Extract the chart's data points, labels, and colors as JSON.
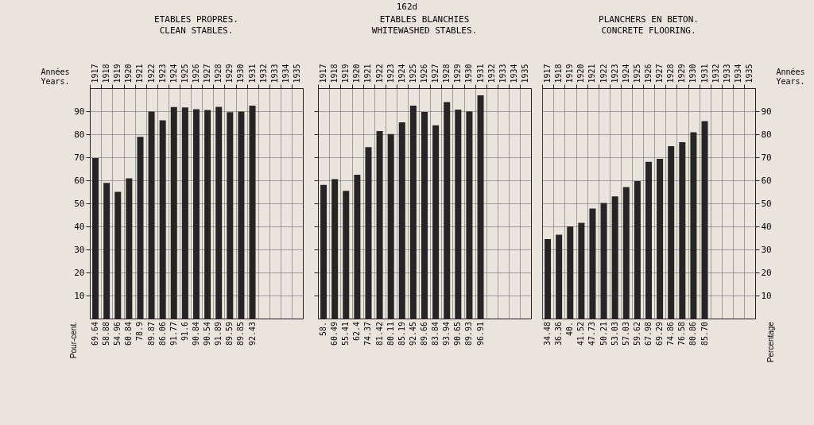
{
  "chart_data": [
    {
      "type": "bar",
      "title": "ETABLES PROPRES.",
      "subtitle": "CLEAN STABLES.",
      "xlabel": "Années Years.",
      "ylabel": "Pour-cent.",
      "annotations": [
        "162d"
      ],
      "categories": [
        "1917",
        "1918",
        "1919",
        "1920",
        "1921",
        "1922",
        "1923",
        "1924",
        "1925",
        "1926",
        "1927",
        "1928",
        "1929",
        "1930",
        "1931",
        "1932",
        "1933",
        "1934",
        "1935"
      ],
      "values": [
        69.64,
        58.88,
        54.96,
        60.84,
        78.9,
        89.87,
        86.06,
        91.77,
        91.6,
        90.84,
        90.54,
        91.89,
        89.59,
        89.85,
        92.43,
        null,
        null,
        null,
        null
      ],
      "value_labels": [
        "69.64",
        "58.88",
        "54.96",
        "60.84",
        "78.9",
        "89.87",
        "86.06",
        "91.77",
        "91.6",
        "90.84",
        "90.54",
        "91.89",
        "89.59",
        "89.85",
        "92.43",
        null,
        null,
        null,
        null
      ],
      "color": "#262424",
      "ylim": [
        0,
        100
      ],
      "yticks": [
        10,
        20,
        30,
        40,
        50,
        60,
        70,
        80,
        90
      ],
      "grid": true
    },
    {
      "type": "bar",
      "title": "ETABLES BLANCHIES",
      "subtitle": "WHITEWASHED STABLES.",
      "categories": [
        "1917",
        "1918",
        "1919",
        "1920",
        "1921",
        "1922",
        "1923",
        "1924",
        "1925",
        "1926",
        "1927",
        "1928",
        "1929",
        "1930",
        "1931",
        "1932",
        "1933",
        "1934",
        "1935"
      ],
      "values": [
        58,
        60.49,
        55.41,
        62.4,
        74.37,
        81.42,
        80.11,
        85.19,
        92.45,
        89.66,
        83.84,
        93.94,
        90.65,
        89.93,
        96.91,
        null,
        null,
        null,
        null
      ],
      "value_labels": [
        "58.",
        "60.49",
        "55.41",
        "62.4",
        "74.37",
        "81.42",
        "80.11",
        "85.19",
        "92.45",
        "89.66",
        "83.84",
        "93.94",
        "90.65",
        "89.93",
        "96.91",
        null,
        null,
        null,
        null
      ],
      "color": "#262424",
      "ylim": [
        0,
        100
      ],
      "yticks": [
        10,
        20,
        30,
        40,
        50,
        60,
        70,
        80,
        90
      ],
      "grid": true,
      "tick_labels": "x"
    },
    {
      "type": "bar",
      "title": "PLANCHERS EN BETON.",
      "subtitle": "CONCRETE FLOORING.",
      "xlabel": "Années Years.",
      "ylabel": "Percentage",
      "categories": [
        "1917",
        "1918",
        "1919",
        "1920",
        "1921",
        "1922",
        "1923",
        "1924",
        "1925",
        "1926",
        "1927",
        "1928",
        "1929",
        "1930",
        "1931",
        "1932",
        "1933",
        "1934",
        "1935"
      ],
      "values": [
        34.48,
        36.36,
        40,
        41.52,
        47.73,
        50.21,
        53.03,
        57.03,
        59.62,
        67.98,
        69.29,
        74.86,
        76.58,
        80.86,
        85.7,
        null,
        null,
        null,
        null
      ],
      "value_labels": [
        "34.48",
        "36.36",
        "40.",
        "41.52",
        "47.73",
        "50.21",
        "53.03",
        "57.03",
        "59.62",
        "67.98",
        "69.29",
        "74.86",
        "76.58",
        "80.86",
        "85.70",
        null,
        null,
        null,
        null
      ],
      "color": "#262424",
      "ylim": [
        0,
        100
      ],
      "yticks": [
        10,
        20,
        30,
        40,
        50,
        60,
        70,
        80,
        90
      ],
      "grid": true
    }
  ]
}
